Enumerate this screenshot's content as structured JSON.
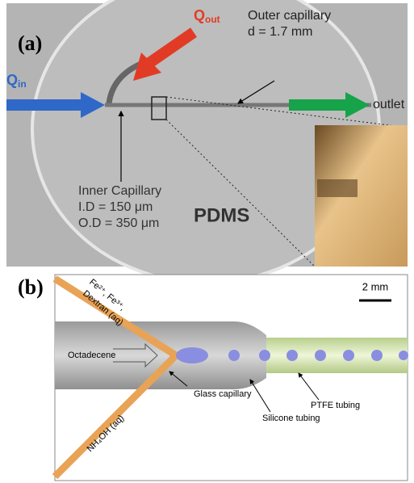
{
  "panel_a": {
    "label": "(a)",
    "q_out": {
      "main": "Q",
      "sub": "out"
    },
    "q_in": {
      "main": "Q",
      "sub": "in"
    },
    "outer_capillary": {
      "title": "Outer capillary",
      "diameter": "d = 1.7 mm"
    },
    "outlet": "outlet",
    "inner_capillary": {
      "title": "Inner Capillary",
      "inner_diameter": "I.D = 150 μm",
      "outer_diameter": "O.D = 350 μm"
    },
    "material": "PDMS"
  },
  "panel_b": {
    "label": "(b)",
    "scale_bar": "2 mm",
    "top_inlet": {
      "line1": "Fe²⁺, Fe³⁺,",
      "line2": "Dextran (aq)"
    },
    "bottom_inlet": "NH₄OH (aq)",
    "continuous_phase": "Octadecene",
    "glass_capillary": "Glass capillary",
    "silicone_tubing": "Silicone tubing",
    "ptfe_tubing": "PTFE tubing"
  }
}
